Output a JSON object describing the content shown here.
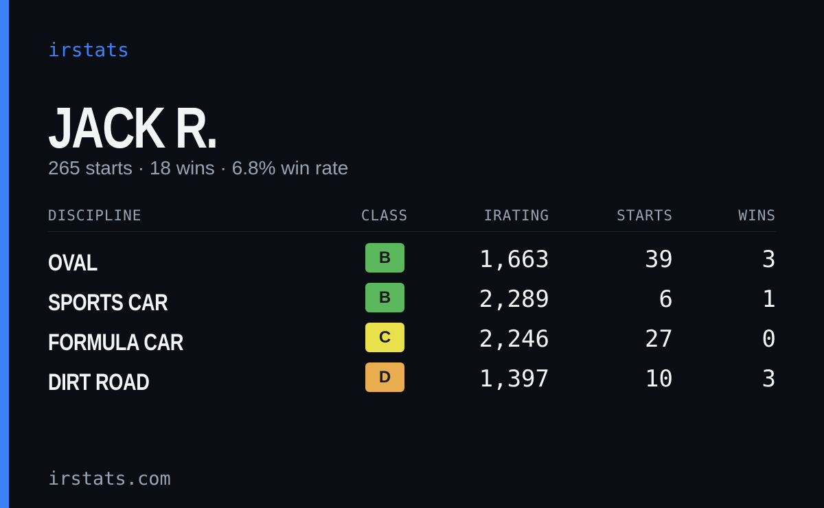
{
  "brand": "irstats",
  "driver": {
    "name": "JACK R.",
    "summary": "265 starts · 18 wins · 6.8% win rate"
  },
  "table": {
    "columns": [
      "DISCIPLINE",
      "CLASS",
      "IRATING",
      "STARTS",
      "WINS"
    ],
    "rows": [
      {
        "discipline": "OVAL",
        "class": "B",
        "class_color": "#5cb85c",
        "irating": "1,663",
        "starts": "39",
        "wins": "3"
      },
      {
        "discipline": "SPORTS CAR",
        "class": "B",
        "class_color": "#5cb85c",
        "irating": "2,289",
        "starts": "6",
        "wins": "1"
      },
      {
        "discipline": "FORMULA CAR",
        "class": "C",
        "class_color": "#e8e14c",
        "irating": "2,246",
        "starts": "27",
        "wins": "0"
      },
      {
        "discipline": "DIRT ROAD",
        "class": "D",
        "class_color": "#e9ac4f",
        "irating": "1,397",
        "starts": "10",
        "wins": "3"
      }
    ]
  },
  "footer": "irstats.com"
}
